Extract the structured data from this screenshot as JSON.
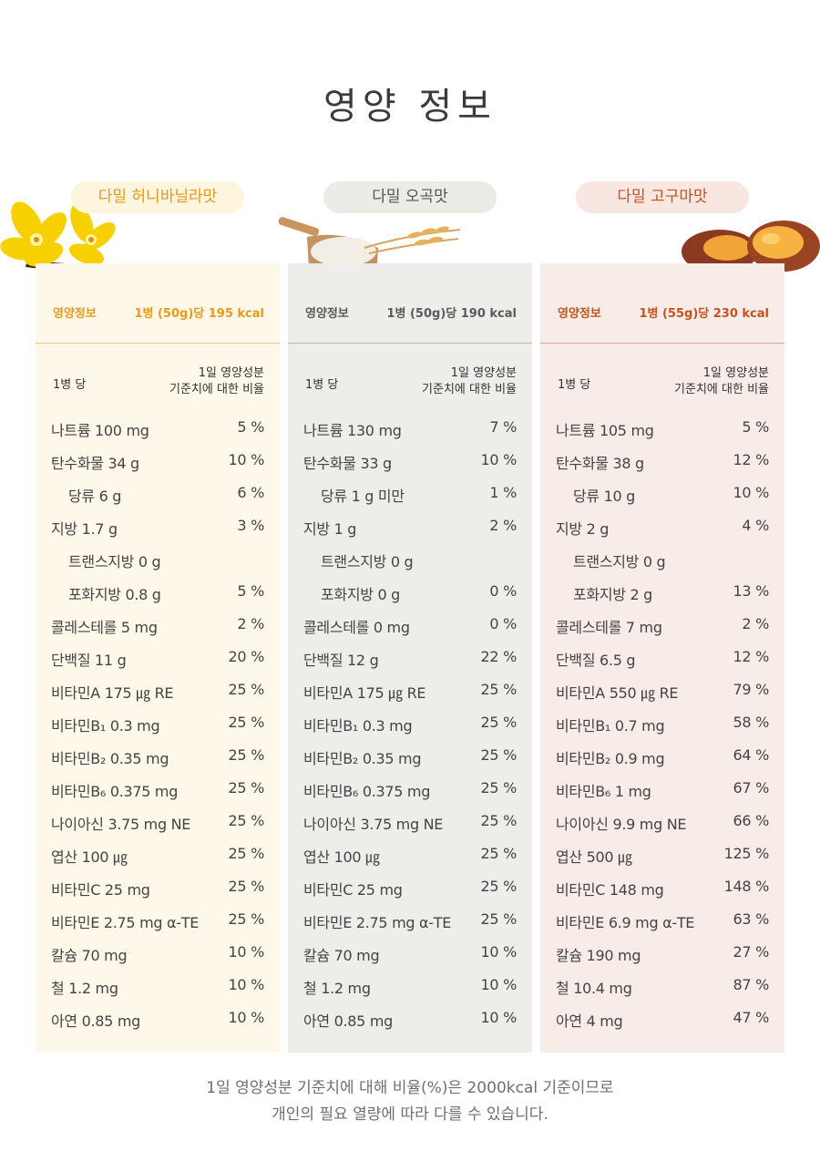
{
  "title": "영양 정보",
  "products": [
    {
      "name": "다밀 허니바닐라맛",
      "accent": "#e89a18",
      "header_label": "영양정보",
      "header_value": "1병 (50g)당 195 kcal",
      "per_label": "1병 당",
      "ratio_label_1": "1일 영양성분",
      "ratio_label_2": "기준치에 대한 비율",
      "rows": [
        {
          "name": "나트륨 100 mg",
          "pct": "5 %"
        },
        {
          "name": "탄수화물 34 g",
          "pct": "10 %"
        },
        {
          "name": "당류 6 g",
          "pct": "6 %"
        },
        {
          "name": "지방 1.7 g",
          "pct": "3 %"
        },
        {
          "name": "트랜스지방 0 g",
          "pct": ""
        },
        {
          "name": "포화지방 0.8 g",
          "pct": "5 %"
        },
        {
          "name": "콜레스테롤 5 mg",
          "pct": "2 %"
        },
        {
          "name": "단백질 11 g",
          "pct": "20 %"
        },
        {
          "name": "비타민A 175 ㎍ RE",
          "pct": "25 %"
        },
        {
          "name": "비타민B₁ 0.3 mg",
          "pct": "25 %"
        },
        {
          "name": "비타민B₂ 0.35 mg",
          "pct": "25 %"
        },
        {
          "name": "비타민B₆ 0.375 mg",
          "pct": "25 %"
        },
        {
          "name": "나이아신 3.75 mg NE",
          "pct": "25 %"
        },
        {
          "name": "엽산 100 ㎍",
          "pct": "25 %"
        },
        {
          "name": "비타민C 25 mg",
          "pct": "25 %"
        },
        {
          "name": "비타민E 2.75 mg α-TE",
          "pct": "25 %"
        },
        {
          "name": "칼슘 70 mg",
          "pct": "10 %"
        },
        {
          "name": "철 1.2 mg",
          "pct": "10 %"
        },
        {
          "name": "아연 0.85 mg",
          "pct": "10 %"
        }
      ]
    },
    {
      "name": "다밀 오곡맛",
      "accent": "#5a5a5a",
      "header_label": "영양정보",
      "header_value": "1병 (50g)당 190 kcal",
      "per_label": "1병 당",
      "ratio_label_1": "1일 영양성분",
      "ratio_label_2": "기준치에 대한 비율",
      "rows": [
        {
          "name": "나트륨 130 mg",
          "pct": "7 %"
        },
        {
          "name": "탄수화물 33 g",
          "pct": "10 %"
        },
        {
          "name": "당류 1 g 미만",
          "pct": "1 %"
        },
        {
          "name": "지방 1 g",
          "pct": "2 %"
        },
        {
          "name": "트랜스지방 0 g",
          "pct": ""
        },
        {
          "name": "포화지방 0 g",
          "pct": "0 %"
        },
        {
          "name": "콜레스테롤 0 mg",
          "pct": "0 %"
        },
        {
          "name": "단백질 12 g",
          "pct": "22 %"
        },
        {
          "name": "비타민A 175 ㎍ RE",
          "pct": "25 %"
        },
        {
          "name": "비타민B₁ 0.3 mg",
          "pct": "25 %"
        },
        {
          "name": "비타민B₂ 0.35 mg",
          "pct": "25 %"
        },
        {
          "name": "비타민B₆ 0.375 mg",
          "pct": "25 %"
        },
        {
          "name": "나이아신 3.75 mg NE",
          "pct": "25 %"
        },
        {
          "name": "엽산 100 ㎍",
          "pct": "25 %"
        },
        {
          "name": "비타민C 25 mg",
          "pct": "25 %"
        },
        {
          "name": "비타민E 2.75 mg α-TE",
          "pct": "25 %"
        },
        {
          "name": "칼슘 70 mg",
          "pct": "10 %"
        },
        {
          "name": "철 1.2 mg",
          "pct": "10 %"
        },
        {
          "name": "아연 0.85 mg",
          "pct": "10 %"
        }
      ]
    },
    {
      "name": "다밀 고구마맛",
      "accent": "#c5531f",
      "header_label": "영양정보",
      "header_value": "1병 (55g)당 230 kcal",
      "per_label": "1병 당",
      "ratio_label_1": "1일 영양성분",
      "ratio_label_2": "기준치에 대한 비율",
      "rows": [
        {
          "name": "나트륨 105 mg",
          "pct": "5 %"
        },
        {
          "name": "탄수화물 38 g",
          "pct": "12 %"
        },
        {
          "name": "당류 10 g",
          "pct": "10 %"
        },
        {
          "name": "지방 2 g",
          "pct": "4 %"
        },
        {
          "name": "트랜스지방 0 g",
          "pct": ""
        },
        {
          "name": "포화지방 2 g",
          "pct": "13 %"
        },
        {
          "name": "콜레스테롤 7 mg",
          "pct": "2 %"
        },
        {
          "name": "단백질 6.5 g",
          "pct": "12 %"
        },
        {
          "name": "비타민A 550 ㎍ RE",
          "pct": "79 %"
        },
        {
          "name": "비타민B₁ 0.7 mg",
          "pct": "58 %"
        },
        {
          "name": "비타민B₂ 0.9 mg",
          "pct": "64 %"
        },
        {
          "name": "비타민B₆ 1 mg",
          "pct": "67 %"
        },
        {
          "name": "나이아신 9.9 mg NE",
          "pct": "66 %"
        },
        {
          "name": "엽산 500 ㎍",
          "pct": "125 %"
        },
        {
          "name": "비타민C 148 mg",
          "pct": "148 %"
        },
        {
          "name": "비타민E 6.9 mg α-TE",
          "pct": "63 %"
        },
        {
          "name": "칼슘 190 mg",
          "pct": "27 %"
        },
        {
          "name": "철 10.4 mg",
          "pct": "87 %"
        },
        {
          "name": "아연 4 mg",
          "pct": "47 %"
        }
      ]
    }
  ],
  "footnote_line1": "1일 영양성분 기준치에 대해 비율(%)은 2000kcal 기준이므로",
  "footnote_line2": "개인의 필요 열량에 따라 다를 수 있습니다.",
  "icons": [
    "vanilla-flower-icon",
    "wheat-scoop-icon",
    "sweet-potato-icon"
  ]
}
